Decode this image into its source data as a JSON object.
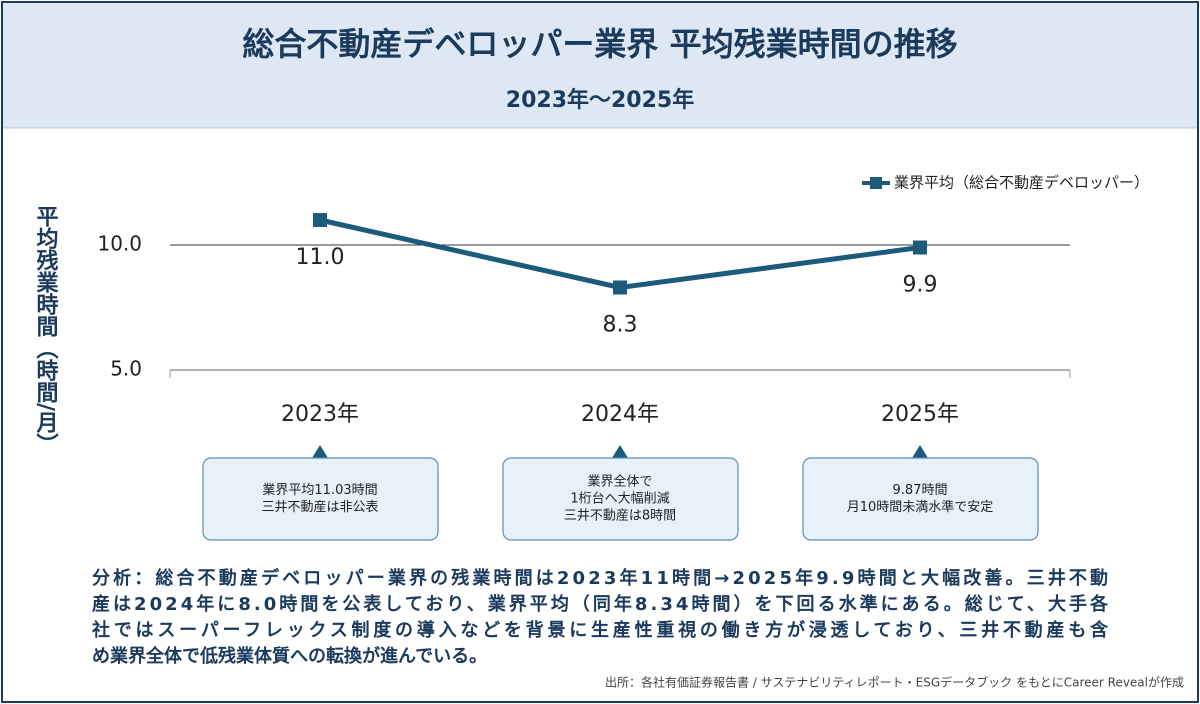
{
  "chart_data": {
    "type": "line",
    "title": "総合不動産デベロッパー業界 平均残業時間の推移",
    "subtitle": "2023年〜2025年",
    "y_label": "平均残業時間（時間/月）",
    "categories": [
      "2023年",
      "2024年",
      "2025年"
    ],
    "series": [
      {
        "name": "業界平均（総合不動産デベロッパー）",
        "color": "#1d5b7c",
        "values": [
          11.0,
          8.3,
          9.9
        ],
        "value_labels": [
          "11.0",
          "8.3",
          "9.9"
        ]
      }
    ],
    "ylim": [
      5,
      12
    ],
    "yticks": [
      {
        "value": 5,
        "label": "5.0"
      },
      {
        "value": 10,
        "label": "10.0"
      }
    ],
    "grid": true,
    "legend": "top-right",
    "callouts": [
      [
        "業界平均11.03時間",
        "三井不動産は非公表"
      ],
      [
        "業界全体で",
        "1桁台へ大幅削減",
        "三井不動産は8時間"
      ],
      [
        "9.87時間",
        "月10時間未満水準で安定"
      ]
    ],
    "analysis": [
      "分析：総合不動産デベロッパー業界の残業時間は2023年11時間→2025年9.9時間と大幅改善。三井不動",
      "産は2024年に8.0時間を公表しており、業界平均（同年8.34時間）を下回る水準にある。総じて、大手各",
      "社ではスーパーフレックス制度の導入などを背景に生産性重視の働き方が浸透しており、三井不動産も含",
      "め業界全体で低残業体質への転換が進んでいる。"
    ],
    "source": "出所：各社有価証券報告書 / サステナビリティレポート・ESGデータブック をもとにCareer Revealが作成"
  }
}
